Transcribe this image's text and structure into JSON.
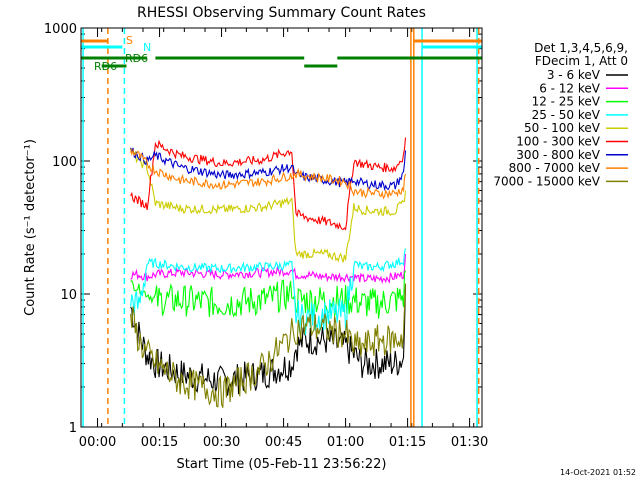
{
  "chart_data": {
    "type": "line",
    "title": "RHESSI Observing Summary Count Rates",
    "xlabel": "Start Time (05-Feb-11 23:56:22)",
    "ylabel": "Count Rate (s⁻¹ detector⁻¹)",
    "y_scale": "log",
    "ylim": [
      1,
      1000
    ],
    "xlim_minutes": [
      -4,
      93
    ],
    "x_tick_labels": [
      {
        "label": "00:00",
        "minute": 0
      },
      {
        "label": "00:15",
        "minute": 15
      },
      {
        "label": "00:30",
        "minute": 30
      },
      {
        "label": "00:45",
        "minute": 45
      },
      {
        "label": "01:00",
        "minute": 60
      },
      {
        "label": "01:15",
        "minute": 75
      },
      {
        "label": "01:30",
        "minute": 90
      }
    ],
    "y_tick_labels": [
      {
        "label": "1",
        "value": 1
      },
      {
        "label": "10",
        "value": 10
      },
      {
        "label": "100",
        "value": 100
      },
      {
        "label": "1000",
        "value": 1000
      }
    ],
    "legend_header": [
      "Det 1,3,4,5,6,9,",
      "FDecim 1, Att 0"
    ],
    "legend_position": "right",
    "series": [
      {
        "name": "3 - 6 keV",
        "color": "#000000",
        "x": [
          8,
          10,
          12,
          14,
          20,
          30,
          40,
          47,
          48,
          50,
          55,
          60,
          62,
          64,
          68,
          72,
          74,
          74.5
        ],
        "y": [
          8,
          5,
          3.5,
          3,
          2.5,
          2.2,
          2.5,
          3,
          4,
          4.5,
          4.5,
          4,
          3.5,
          3,
          3,
          3,
          3.3,
          12
        ]
      },
      {
        "name": "6 - 12 keV",
        "color": "#ff00ff",
        "x": [
          8,
          10,
          12,
          14,
          20,
          30,
          40,
          47,
          48,
          50,
          55,
          60,
          62,
          64,
          68,
          72,
          74,
          74.5
        ],
        "y": [
          14,
          14,
          13.5,
          14,
          14.5,
          14,
          14.5,
          15,
          14,
          14,
          13.5,
          13.5,
          13.5,
          13,
          13,
          13.5,
          14,
          20
        ]
      },
      {
        "name": "12 - 25 keV",
        "color": "#00ff00",
        "x": [
          8,
          10,
          12,
          14,
          20,
          30,
          40,
          47,
          48,
          50,
          55,
          60,
          62,
          64,
          68,
          72,
          74,
          74.5
        ],
        "y": [
          12,
          11,
          10,
          9,
          9,
          8.5,
          9,
          10,
          9,
          9,
          9,
          9,
          9,
          8.5,
          8.5,
          9,
          9.5,
          15
        ]
      },
      {
        "name": "25 - 50 keV",
        "color": "#00ffff",
        "x": [
          8,
          10,
          12,
          14,
          20,
          30,
          40,
          47,
          48,
          50,
          55,
          60,
          62,
          64,
          68,
          72,
          74,
          74.5
        ],
        "y": [
          9,
          8,
          17,
          17,
          16,
          15.5,
          16,
          16.5,
          7,
          6.5,
          7,
          7,
          17,
          16,
          16,
          17,
          18,
          22
        ]
      },
      {
        "name": "50 - 100 keV",
        "color": "#cccc00",
        "x": [
          8,
          10,
          12,
          14,
          20,
          30,
          40,
          47,
          48,
          50,
          55,
          60,
          62,
          64,
          68,
          72,
          74,
          74.5
        ],
        "y": [
          120,
          100,
          90,
          48,
          44,
          43,
          45,
          50,
          20,
          20,
          20,
          18.5,
          45,
          43,
          42,
          42,
          48,
          60
        ]
      },
      {
        "name": "100 - 300 keV",
        "color": "#ff0000",
        "x": [
          8,
          10,
          12,
          14,
          20,
          30,
          40,
          47,
          48,
          50,
          55,
          60,
          62,
          64,
          68,
          72,
          74,
          74.5
        ],
        "y": [
          55,
          50,
          46,
          135,
          110,
          96,
          102,
          120,
          40,
          38,
          35,
          32,
          100,
          95,
          90,
          88,
          110,
          150
        ]
      },
      {
        "name": "300 - 800 keV",
        "color": "#0000cc",
        "x": [
          8,
          10,
          12,
          14,
          20,
          30,
          40,
          47,
          48,
          50,
          55,
          60,
          62,
          64,
          68,
          72,
          74,
          74.5
        ],
        "y": [
          120,
          110,
          100,
          110,
          90,
          78,
          82,
          90,
          78,
          76,
          72,
          68,
          72,
          68,
          66,
          65,
          80,
          120
        ]
      },
      {
        "name": "800 - 7000 keV",
        "color": "#ff8000",
        "x": [
          8,
          10,
          12,
          14,
          20,
          30,
          40,
          47,
          48,
          50,
          55,
          60,
          62,
          64,
          68,
          72,
          74,
          74.5
        ],
        "y": [
          120,
          110,
          95,
          85,
          72,
          66,
          70,
          78,
          80,
          78,
          74,
          70,
          60,
          58,
          57,
          57,
          62,
          80
        ]
      },
      {
        "name": "7000 - 15000 keV",
        "color": "#808000",
        "x": [
          8,
          10,
          12,
          14,
          20,
          30,
          40,
          47,
          48,
          50,
          55,
          60,
          62,
          64,
          68,
          72,
          74,
          74.5
        ],
        "y": [
          7,
          4.5,
          3.5,
          3,
          2.2,
          1.8,
          2.8,
          5,
          5.5,
          5.8,
          5.5,
          5,
          4,
          4,
          4.5,
          4.5,
          4.8,
          12
        ]
      }
    ],
    "annotations": [
      {
        "text": "S",
        "color": "#ff8000"
      },
      {
        "text": "N",
        "color": "#00ffff"
      },
      {
        "text": "RD6",
        "color": "#008000"
      },
      {
        "text": "RD6",
        "color": "#008000"
      }
    ],
    "footer_text": "14-Oct-2021 01:52"
  }
}
